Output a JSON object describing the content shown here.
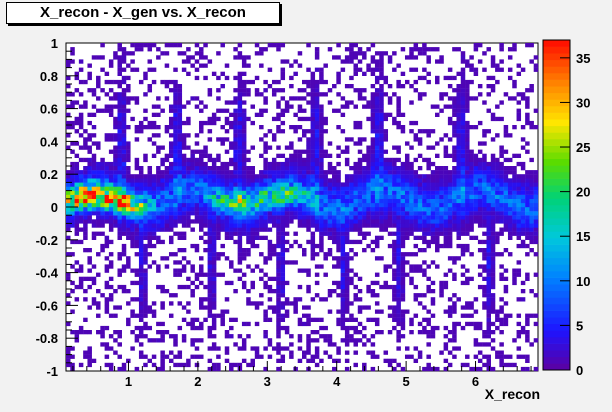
{
  "chart_data": {
    "type": "heatmap",
    "title": "X_recon - X_gen vs. X_recon",
    "xlabel": "X_recon",
    "ylabel": "",
    "xlim": [
      0.1,
      6.9
    ],
    "ylim": [
      -1,
      1
    ],
    "x_ticks": [
      "1",
      "2",
      "3",
      "4",
      "5",
      "6"
    ],
    "y_ticks": [
      "-1",
      "-0.8",
      "-0.6",
      "-0.4",
      "-0.2",
      "0",
      "0.2",
      "0.4",
      "0.6",
      "0.8",
      "1"
    ],
    "colorbar": {
      "range": [
        0,
        37
      ],
      "ticks": [
        "0",
        "5",
        "10",
        "15",
        "20",
        "25",
        "30",
        "35"
      ]
    },
    "features": {
      "band_center_y": 0.05,
      "band_halfwidth_y": 0.12,
      "hot_spots": [
        {
          "x": 0.4,
          "y": 0.05,
          "peak": 37
        },
        {
          "x": 0.9,
          "y": 0.03,
          "peak": 30
        },
        {
          "x": 2.6,
          "y": 0.06,
          "peak": 24
        },
        {
          "x": 3.3,
          "y": 0.05,
          "peak": 20
        }
      ],
      "upward_spikes_x": [
        0.9,
        1.7,
        2.6,
        3.7,
        4.6,
        5.8
      ],
      "downward_spikes_x": [
        1.2,
        2.2,
        3.2,
        4.1,
        4.9,
        6.2
      ]
    }
  }
}
